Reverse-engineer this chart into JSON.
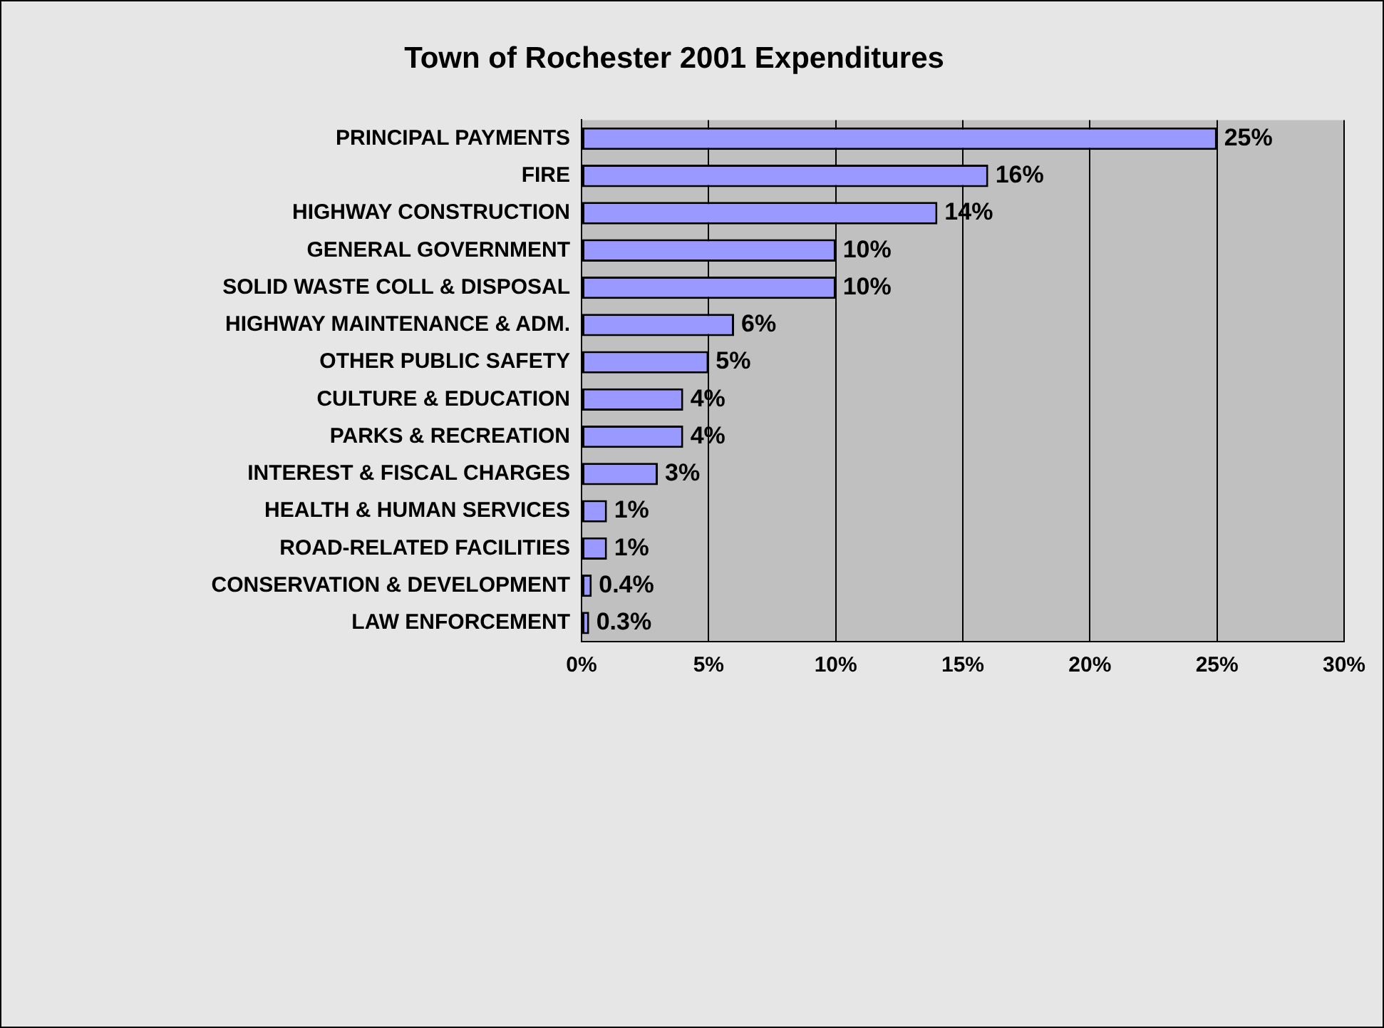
{
  "chart_data": {
    "type": "bar",
    "orientation": "horizontal",
    "title": "Town of Rochester 2001 Expenditures",
    "categories": [
      "PRINCIPAL PAYMENTS",
      "FIRE",
      "HIGHWAY CONSTRUCTION",
      "GENERAL GOVERNMENT",
      "SOLID WASTE COLL & DISPOSAL",
      "HIGHWAY MAINTENANCE & ADM.",
      "OTHER PUBLIC SAFETY",
      "CULTURE & EDUCATION",
      "PARKS & RECREATION",
      "INTEREST & FISCAL CHARGES",
      "HEALTH & HUMAN SERVICES",
      "ROAD-RELATED FACILITIES",
      "CONSERVATION & DEVELOPMENT",
      "LAW ENFORCEMENT"
    ],
    "values": [
      25,
      16,
      14,
      10,
      10,
      6,
      5,
      4,
      4,
      3,
      1,
      1,
      0.4,
      0.3
    ],
    "value_labels": [
      "25%",
      "16%",
      "14%",
      "10%",
      "10%",
      "6%",
      "5%",
      "4%",
      "4%",
      "3%",
      "1%",
      "1%",
      "0.4%",
      "0.3%"
    ],
    "color": "#9999ff",
    "xlim": [
      0,
      30
    ],
    "xticks": [
      {
        "value": 0,
        "label": "0%"
      },
      {
        "value": 5,
        "label": "5%"
      },
      {
        "value": 10,
        "label": "10%"
      },
      {
        "value": 15,
        "label": "15%"
      },
      {
        "value": 20,
        "label": "20%"
      },
      {
        "value": 25,
        "label": "25%"
      },
      {
        "value": 30,
        "label": "30%"
      }
    ],
    "grid": "x",
    "legend": false
  }
}
